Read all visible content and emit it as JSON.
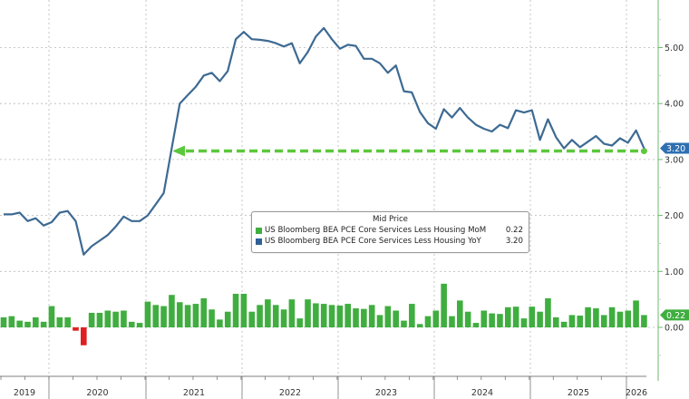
{
  "chart_data": {
    "type": "bar+line",
    "title": "",
    "legend_title": "Mid Price",
    "xlabel": "",
    "ylabel": "",
    "ylim": [
      -0.9,
      5.8
    ],
    "yticks": [
      "0.00",
      "1.00",
      "2.00",
      "3.00",
      "4.00",
      "5.00"
    ],
    "year_labels": [
      "2019",
      "2020",
      "2021",
      "2022",
      "2023",
      "2024",
      "2025",
      "2026"
    ],
    "grid": true,
    "legend_position": "center",
    "series": [
      {
        "name": "US Bloomberg BEA PCE Core Services Less Housing MoM",
        "type": "bar",
        "color": "#3fae3f",
        "negative_color": "#e02020",
        "last_value": "0.22",
        "values": [
          0.18,
          0.2,
          0.12,
          0.1,
          0.18,
          0.1,
          0.38,
          0.18,
          0.18,
          -0.06,
          -0.32,
          0.26,
          0.26,
          0.3,
          0.28,
          0.3,
          0.1,
          0.08,
          0.46,
          0.4,
          0.38,
          0.58,
          0.45,
          0.4,
          0.42,
          0.52,
          0.32,
          0.14,
          0.28,
          0.6,
          0.6,
          0.28,
          0.4,
          0.5,
          0.4,
          0.32,
          0.5,
          0.16,
          0.5,
          0.43,
          0.42,
          0.4,
          0.39,
          0.42,
          0.34,
          0.33,
          0.4,
          0.22,
          0.38,
          0.3,
          0.12,
          0.42,
          0.06,
          0.2,
          0.3,
          0.78,
          0.2,
          0.48,
          0.28,
          0.08,
          0.3,
          0.25,
          0.24,
          0.36,
          0.37,
          0.16,
          0.37,
          0.28,
          0.52,
          0.18,
          0.1,
          0.22,
          0.21,
          0.36,
          0.34,
          0.22,
          0.36,
          0.28,
          0.3,
          0.48,
          0.22
        ]
      },
      {
        "name": "US Bloomberg BEA PCE Core Services Less Housing YoY",
        "type": "line",
        "color": "#3d6a93",
        "last_value": "3.20",
        "values": [
          2.02,
          2.02,
          2.05,
          1.9,
          1.95,
          1.82,
          1.88,
          2.05,
          2.08,
          1.9,
          1.3,
          1.45,
          1.55,
          1.65,
          1.8,
          1.98,
          1.9,
          1.9,
          2.0,
          2.2,
          2.4,
          3.2,
          4.0,
          4.15,
          4.3,
          4.5,
          4.55,
          4.4,
          4.58,
          5.15,
          5.28,
          5.15,
          5.14,
          5.12,
          5.08,
          5.02,
          5.08,
          4.72,
          4.92,
          5.2,
          5.35,
          5.15,
          4.98,
          5.05,
          5.03,
          4.8,
          4.8,
          4.72,
          4.55,
          4.68,
          4.22,
          4.2,
          3.85,
          3.65,
          3.55,
          3.9,
          3.75,
          3.92,
          3.75,
          3.62,
          3.55,
          3.5,
          3.62,
          3.56,
          3.88,
          3.84,
          3.88,
          3.35,
          3.72,
          3.4,
          3.2,
          3.35,
          3.22,
          3.32,
          3.42,
          3.28,
          3.25,
          3.38,
          3.3,
          3.52,
          3.2
        ]
      }
    ],
    "annotation": {
      "type": "dashed-arrow",
      "color": "#5cc83c",
      "level": 3.2,
      "description": "Horizontal dashed green arrow pointing left at 3.20 level"
    }
  },
  "legend": {
    "title": "Mid Price",
    "items": [
      {
        "label": "US Bloomberg BEA PCE Core Services Less Housing MoM",
        "value": "0.22",
        "color": "#3fae3f"
      },
      {
        "label": "US Bloomberg BEA PCE Core Services Less Housing YoY",
        "value": "3.20",
        "color": "#2f5f96"
      }
    ]
  },
  "axis": {
    "right_tags": [
      {
        "value": "3.20",
        "color": "#2f6fb0"
      },
      {
        "value": "0.22",
        "color": "#3fae3f"
      }
    ]
  }
}
